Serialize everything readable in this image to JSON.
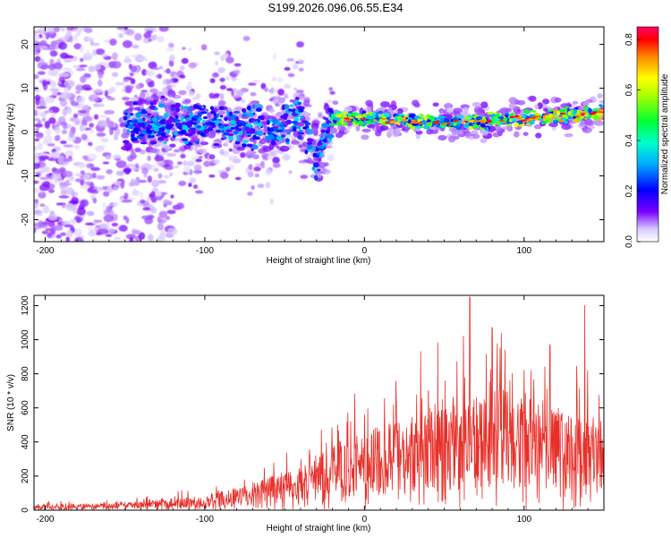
{
  "figure": {
    "title": "S199.2026.096.06.55.E34"
  },
  "chart_data": [
    {
      "type": "heatmap",
      "name": "spectrogram",
      "xlabel": "Height of straight line (km)",
      "ylabel": "Frequency (Hz)",
      "xlim": [
        -207,
        150
      ],
      "ylim": [
        -25,
        24
      ],
      "x_ticks": [
        -200,
        -100,
        0,
        100
      ],
      "y_ticks": [
        -20,
        -10,
        0,
        10,
        20
      ],
      "grid": false,
      "colorbar": {
        "label": "Normalized spectral amplitude",
        "range": [
          0,
          0.85
        ],
        "ticks": [
          0.0,
          0.2,
          0.4,
          0.6,
          0.8
        ],
        "colormap": [
          "#ffffff",
          "#6a00ff",
          "#0000ff",
          "#00ffff",
          "#00ff00",
          "#ffff00",
          "#ff0000",
          "#ff0080"
        ]
      },
      "ridge": {
        "description_values": [
          {
            "x": -150,
            "y": 2
          },
          {
            "x": -100,
            "y": 2
          },
          {
            "x": -60,
            "y": 1
          },
          {
            "x": -40,
            "y": 4
          },
          {
            "x": -30,
            "y": -6
          },
          {
            "x": -20,
            "y": 3
          },
          {
            "x": 0,
            "y": 3
          },
          {
            "x": 50,
            "y": 2
          },
          {
            "x": 100,
            "y": 3
          },
          {
            "x": 150,
            "y": 4.5
          }
        ]
      }
    },
    {
      "type": "line",
      "name": "snr",
      "xlabel": "Height of straight line (km)",
      "ylabel": "SNR (10 * v/v)",
      "xlim": [
        -207,
        150
      ],
      "ylim": [
        0,
        1260
      ],
      "x_ticks": [
        -200,
        -100,
        0,
        100
      ],
      "y_ticks": [
        0,
        200,
        400,
        600,
        800,
        1000,
        1200
      ],
      "grid": false,
      "series_color": "#e8302a",
      "envelope": [
        {
          "x": -207,
          "y": 20
        },
        {
          "x": -150,
          "y": 30
        },
        {
          "x": -100,
          "y": 60
        },
        {
          "x": -70,
          "y": 110
        },
        {
          "x": -40,
          "y": 180
        },
        {
          "x": -20,
          "y": 260
        },
        {
          "x": 0,
          "y": 320
        },
        {
          "x": 20,
          "y": 360
        },
        {
          "x": 40,
          "y": 420
        },
        {
          "x": 60,
          "y": 470
        },
        {
          "x": 80,
          "y": 500
        },
        {
          "x": 100,
          "y": 480
        },
        {
          "x": 120,
          "y": 420
        },
        {
          "x": 135,
          "y": 380
        },
        {
          "x": 150,
          "y": 320
        }
      ],
      "peaks": [
        {
          "x": -15,
          "y": 400
        },
        {
          "x": 20,
          "y": 640
        },
        {
          "x": 40,
          "y": 700
        },
        {
          "x": 62,
          "y": 1020
        },
        {
          "x": 66,
          "y": 1250
        },
        {
          "x": 80,
          "y": 1070
        },
        {
          "x": 85,
          "y": 950
        },
        {
          "x": 100,
          "y": 820
        },
        {
          "x": 113,
          "y": 840
        },
        {
          "x": 138,
          "y": 1200
        },
        {
          "x": 148,
          "y": 520
        }
      ]
    }
  ]
}
